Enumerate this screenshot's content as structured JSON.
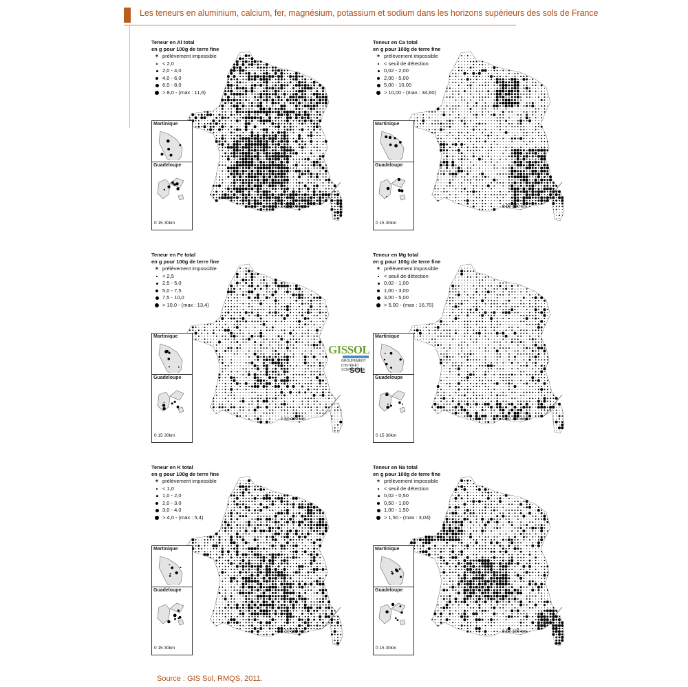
{
  "header": {
    "title": "Les teneurs en aluminium, calcium, fer, magnésium, potassium et sodium dans les horizons supérieurs des sols de France"
  },
  "panels": [
    {
      "element": "Al",
      "title1": "Teneur en Al total",
      "title2": "en g pour 100g de terre fine",
      "legend": [
        "prélèvement impossible",
        "< 2,0",
        "2,0 - 4,0",
        "4,0 - 6,0",
        "6,0 - 8,0",
        "> 8,0 - (max : 11,6)"
      ]
    },
    {
      "element": "Ca",
      "title1": "Teneur en Ca total",
      "title2": "en g pour 100g de terre fine",
      "legend": [
        "prélèvement impossible",
        "< seuil de détection",
        "0,02 - 2,00",
        "2,00 - 5,00",
        "5,00 - 10,00",
        "> 10,00 - (max : 34,60)"
      ]
    },
    {
      "element": "Fe",
      "title1": "Teneur en Fe total",
      "title2": "en g pour 100g de terre fine",
      "legend": [
        "prélèvement impossible",
        "< 2,5",
        "2,5 - 5,0",
        "5,0 - 7,5",
        "7,5 - 10,0",
        "> 10,0 - (max : 13,4)"
      ]
    },
    {
      "element": "Mg",
      "title1": "Teneur en Mg total",
      "title2": "en g pour 100g de terre fine",
      "legend": [
        "prélèvement impossible",
        "< seuil de détection",
        "0,02 - 1,00",
        "1,00 - 3,00",
        "3,00 - 5,00",
        "> 5,00 - (max : 16,70)"
      ]
    },
    {
      "element": "K",
      "title1": "Teneur en K total",
      "title2": "en g pour 100g de terre fine",
      "legend": [
        "prélèvement impossible",
        "< 1,0",
        "1,0 - 2,0",
        "2,0 - 3,0",
        "3,0 - 4,0",
        "> 4,0 - (max : 5,4)"
      ]
    },
    {
      "element": "Na",
      "title1": "Teneur en Na total",
      "title2": "en g pour 100g de terre fine",
      "legend": [
        "prélèvement impossible",
        "< seuil de détection",
        "0,02 - 0,50",
        "0,50 - 1,00",
        "1,00 - 1,50",
        "> 1,50 - (max : 3,04)"
      ]
    }
  ],
  "insets": {
    "martinique": "Martinique",
    "guadeloupe": "Guadeloupe"
  },
  "scale": {
    "main": "0    50   100 km",
    "inset": "0   15   30km"
  },
  "logo": {
    "main_a": "GIS",
    "main_b": "SOL",
    "sub1": "GROUPEMENT",
    "sub2": "D'INTÉRÊT",
    "sub2b": "SCIENTIFIQUE",
    "sub3": "SOL"
  },
  "source": "Source : GIS Sol, RMQS, 2011.",
  "colors": {
    "accent": "#b85d1e",
    "dots": "#000000",
    "land": "#ffffff"
  }
}
